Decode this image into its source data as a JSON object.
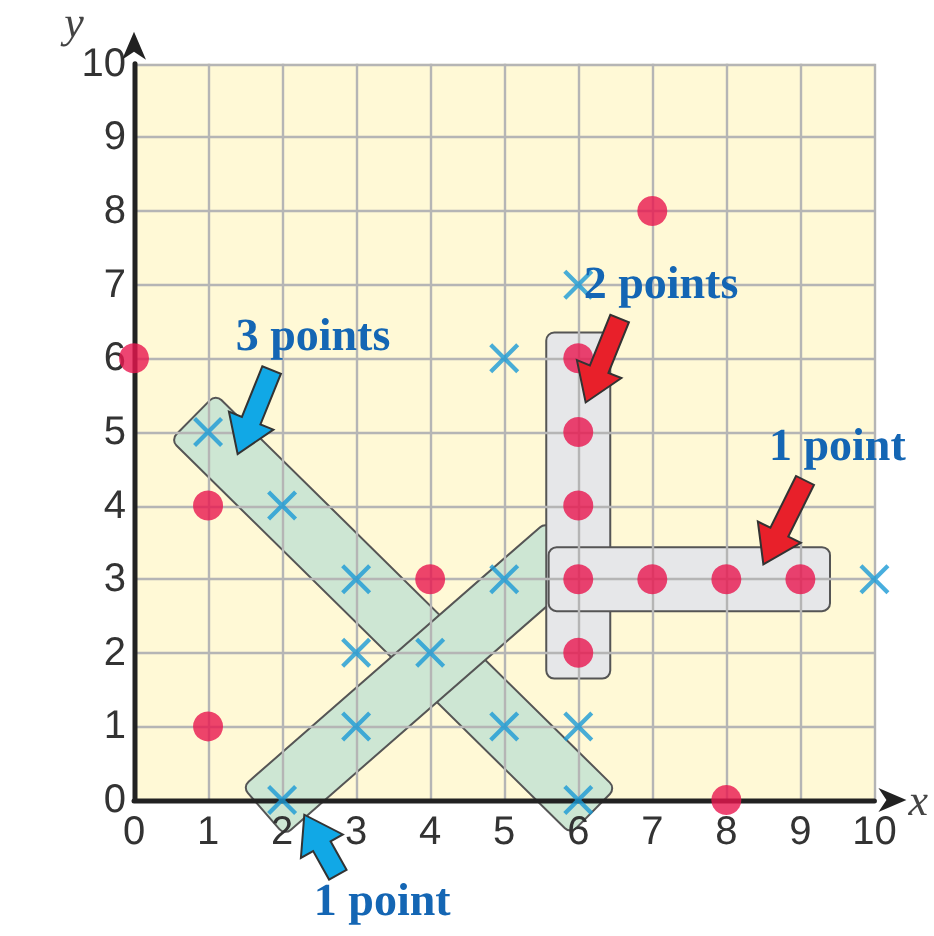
{
  "chart_data": {
    "type": "scatter",
    "xlabel": "x",
    "ylabel": "y",
    "xlim": [
      0,
      10
    ],
    "ylim": [
      0,
      10
    ],
    "xticks": [
      0,
      1,
      2,
      3,
      4,
      5,
      6,
      7,
      8,
      9,
      10
    ],
    "yticks": [
      0,
      1,
      2,
      3,
      4,
      5,
      6,
      7,
      8,
      9,
      10
    ],
    "grid": true,
    "series": [
      {
        "color": "#e8174f",
        "marker": "circle",
        "x": [
          0,
          1,
          1,
          4,
          7,
          6,
          6,
          6,
          6,
          6,
          7,
          8,
          9,
          8
        ],
        "values": [
          6,
          4,
          1,
          3,
          8,
          6,
          5,
          4,
          3,
          2,
          3,
          3,
          3,
          0
        ]
      },
      {
        "color": "#1a9ad6",
        "marker": "cross",
        "x": [
          1,
          2,
          3,
          3,
          3,
          4,
          5,
          5,
          5,
          6,
          6,
          6,
          2,
          10
        ],
        "values": [
          5,
          4,
          3,
          2,
          1,
          2,
          3,
          1,
          6,
          7,
          1,
          0,
          0,
          3
        ]
      }
    ],
    "annotations": [
      "3 points",
      "2 points",
      "1 point",
      "1 point"
    ]
  }
}
